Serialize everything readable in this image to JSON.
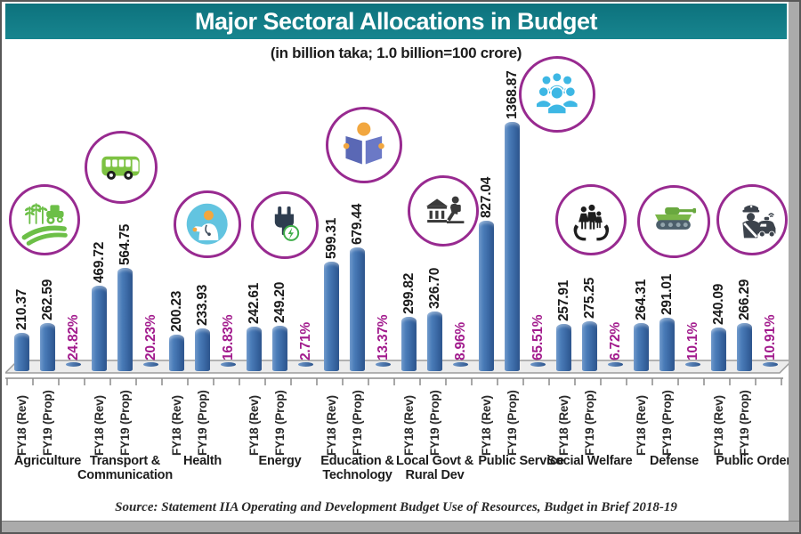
{
  "header": {
    "title": "Major Sectoral Allocations in Budget"
  },
  "subtitle": "(in billion taka; 1.0 billion=100 crore)",
  "source_note": "Source: Statement IIA Operating and Development Budget Use of Resources, Budget in Brief 2018-19",
  "chart_data": {
    "type": "bar",
    "title": "Major Sectoral Allocations in Budget",
    "subtitle": "(in billion taka; 1.0 billion=100 crore)",
    "unit": "billion taka",
    "axis_labels": [
      "FY18 (Rev)",
      "FY19 (Prop)"
    ],
    "ylim": [
      0,
      1400
    ],
    "legend_position": "none",
    "grid": false,
    "sectors": [
      {
        "label": "Agriculture",
        "icon": "agriculture-icon",
        "fy18": "210.37",
        "fy19": "262.59",
        "pct": "24.82%"
      },
      {
        "label": "Transport & Communication",
        "icon": "bus-icon",
        "fy18": "469.72",
        "fy19": "564.75",
        "pct": "20.23%"
      },
      {
        "label": "Health",
        "icon": "doctor-icon",
        "fy18": "200.23",
        "fy19": "233.93",
        "pct": "16.83%"
      },
      {
        "label": "Energy",
        "icon": "power-plug-icon",
        "fy18": "242.61",
        "fy19": "249.20",
        "pct": "2.71%"
      },
      {
        "label": "Education & Technology",
        "icon": "reading-person-icon",
        "fy18": "599.31",
        "fy19": "679.44",
        "pct": "13.37%"
      },
      {
        "label": "Local Govt & Rural Dev",
        "icon": "bank-building-icon",
        "fy18": "299.82",
        "fy19": "326.70",
        "pct": "8.96%"
      },
      {
        "label": "Public Service",
        "icon": "people-group-icon",
        "fy18": "827.04",
        "fy19": "1368.87",
        "pct": "65.51%"
      },
      {
        "label": "Social Welfare",
        "icon": "hands-family-icon",
        "fy18": "257.91",
        "fy19": "275.25",
        "pct": "6.72%"
      },
      {
        "label": "Defense",
        "icon": "tank-icon",
        "fy18": "264.31",
        "fy19": "291.01",
        "pct": "10.1%"
      },
      {
        "label": "Public Order",
        "icon": "police-icon",
        "fy18": "240.09",
        "fy19": "266.29",
        "pct": "10.91%"
      }
    ],
    "colors": {
      "bar": "#3d6fae",
      "pct_label": "#a21b8d",
      "icon_ring": "#982a90",
      "header_bg": "#117f8a",
      "header_text": "#ffffff"
    }
  }
}
